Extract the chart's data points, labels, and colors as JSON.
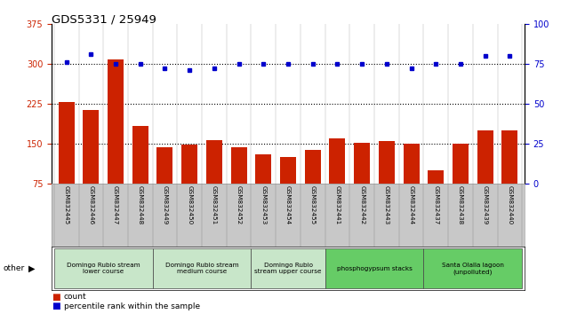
{
  "title": "GDS5331 / 25949",
  "samples": [
    "GSM832445",
    "GSM832446",
    "GSM832447",
    "GSM832448",
    "GSM832449",
    "GSM832450",
    "GSM832451",
    "GSM832452",
    "GSM832453",
    "GSM832454",
    "GSM832455",
    "GSM832441",
    "GSM832442",
    "GSM832443",
    "GSM832444",
    "GSM832437",
    "GSM832438",
    "GSM832439",
    "GSM832440"
  ],
  "counts": [
    228,
    213,
    308,
    183,
    143,
    148,
    157,
    143,
    130,
    125,
    138,
    160,
    152,
    155,
    150,
    100,
    150,
    175,
    175
  ],
  "percentiles": [
    76,
    81,
    75,
    75,
    72,
    71,
    72,
    75,
    75,
    75,
    75,
    75,
    75,
    75,
    72,
    75,
    75,
    80,
    80
  ],
  "groups": [
    {
      "label": "Domingo Rubio stream\nlower course",
      "start": 0,
      "end": 4,
      "color": "#c8e6c9"
    },
    {
      "label": "Domingo Rubio stream\nmedium course",
      "start": 4,
      "end": 8,
      "color": "#c8e6c9"
    },
    {
      "label": "Domingo Rubio\nstream upper course",
      "start": 8,
      "end": 11,
      "color": "#c8e6c9"
    },
    {
      "label": "phosphogypsum stacks",
      "start": 11,
      "end": 15,
      "color": "#66cc66"
    },
    {
      "label": "Santa Olalla lagoon\n(unpolluted)",
      "start": 15,
      "end": 19,
      "color": "#66cc66"
    }
  ],
  "ylim_left": [
    75,
    375
  ],
  "ylim_right": [
    0,
    100
  ],
  "yticks_left": [
    75,
    150,
    225,
    300,
    375
  ],
  "yticks_right": [
    0,
    25,
    50,
    75,
    100
  ],
  "bar_color": "#cc2200",
  "dot_color": "#0000cc",
  "bg_color": "#ffffff",
  "tick_area_color": "#c8c8c8",
  "hline_vals": [
    150,
    225,
    300
  ],
  "legend_items": [
    {
      "color": "#cc2200",
      "label": "count"
    },
    {
      "color": "#0000cc",
      "label": "percentile rank within the sample"
    }
  ]
}
